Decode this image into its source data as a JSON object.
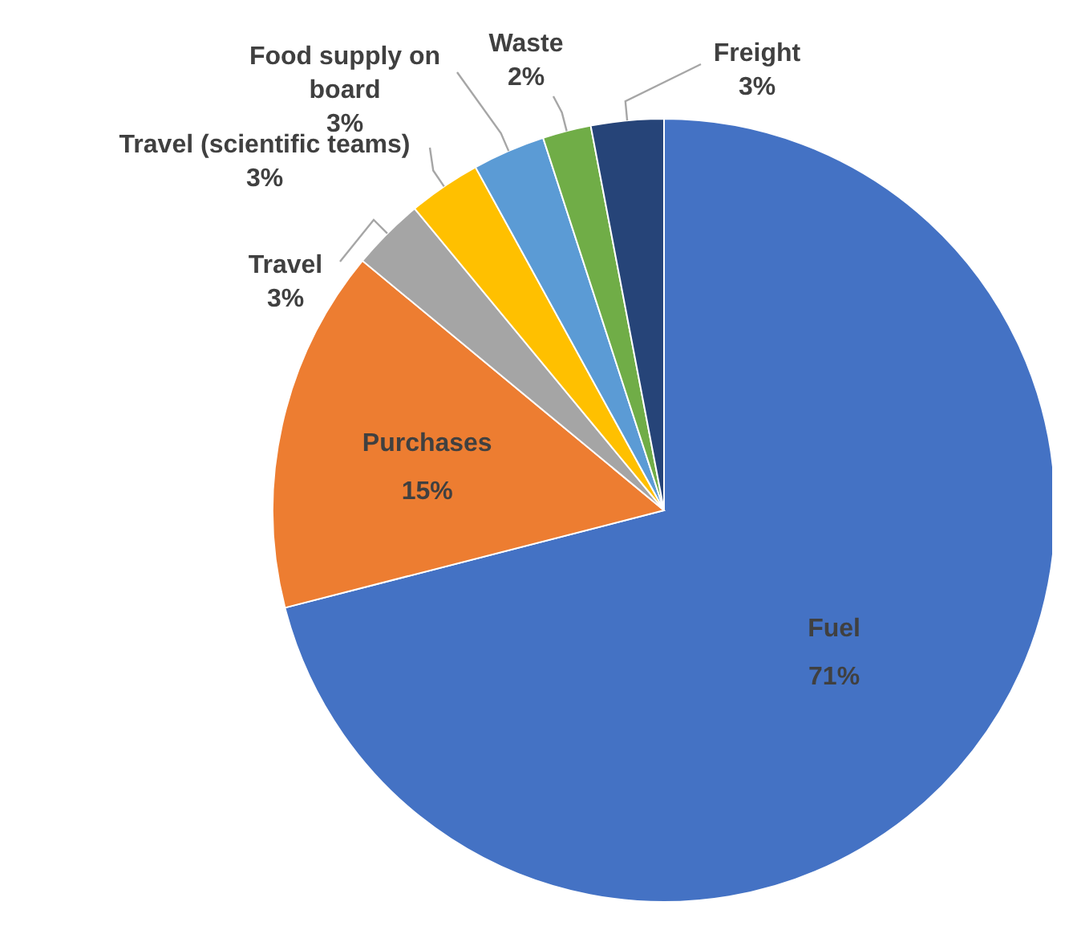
{
  "chart_data": {
    "type": "pie",
    "categories": [
      "Fuel",
      "Purchases",
      "Travel",
      "Travel (scientific teams)",
      "Food supply on board",
      "Waste",
      "Freight"
    ],
    "values": [
      71,
      15,
      3,
      3,
      3,
      2,
      3
    ],
    "colors": [
      "#4472c4",
      "#ed7d31",
      "#a5a5a5",
      "#ffc000",
      "#5b9bd5",
      "#70ad47",
      "#264478"
    ],
    "value_labels": [
      "71%",
      "15%",
      "3%",
      "3%",
      "3%",
      "2%",
      "3%"
    ]
  }
}
